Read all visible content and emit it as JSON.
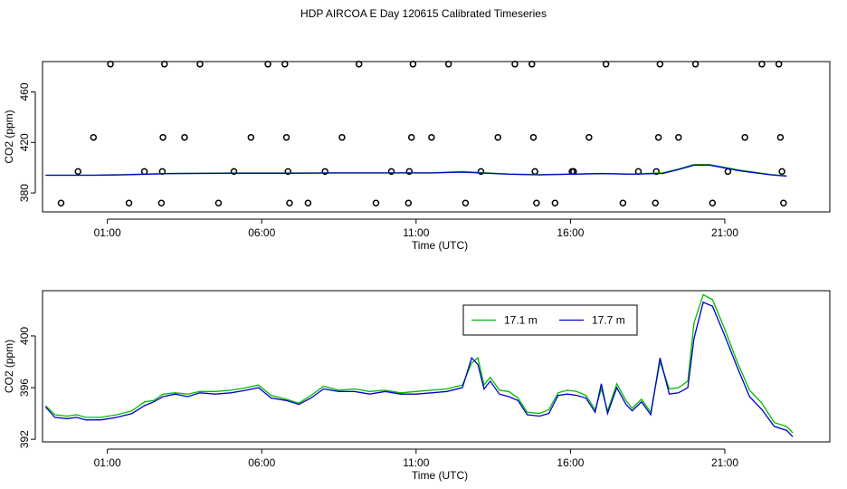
{
  "title": "HDP AIRCOA E  Day 120615  Calibrated Timeseries",
  "chart_data": [
    {
      "type": "scatter",
      "xlabel": "Time (UTC)",
      "ylabel": "CO2 (ppm)",
      "x_ticks": [
        "01:00",
        "06:00",
        "11:00",
        "16:00",
        "21:00"
      ],
      "y_ticks": [
        380,
        420,
        460
      ],
      "xlim_hours": [
        -1.1,
        24.4
      ],
      "ylim": [
        365,
        484
      ],
      "grid": false,
      "calibration_points": [
        {
          "t": -0.5,
          "v": 372
        },
        {
          "t": 0.05,
          "v": 397
        },
        {
          "t": 0.55,
          "v": 424
        },
        {
          "t": 1.1,
          "v": 482
        },
        {
          "t": 1.7,
          "v": 372
        },
        {
          "t": 2.2,
          "v": 397
        },
        {
          "t": 2.75,
          "v": 372
        },
        {
          "t": 2.78,
          "v": 397
        },
        {
          "t": 2.8,
          "v": 424
        },
        {
          "t": 2.85,
          "v": 482
        },
        {
          "t": 3.5,
          "v": 424
        },
        {
          "t": 4.0,
          "v": 482
        },
        {
          "t": 4.6,
          "v": 372
        },
        {
          "t": 5.1,
          "v": 397
        },
        {
          "t": 5.65,
          "v": 424
        },
        {
          "t": 6.2,
          "v": 482
        },
        {
          "t": 6.75,
          "v": 482
        },
        {
          "t": 6.8,
          "v": 424
        },
        {
          "t": 6.85,
          "v": 397
        },
        {
          "t": 6.9,
          "v": 372
        },
        {
          "t": 7.5,
          "v": 372
        },
        {
          "t": 8.05,
          "v": 397
        },
        {
          "t": 8.6,
          "v": 424
        },
        {
          "t": 9.15,
          "v": 482
        },
        {
          "t": 9.7,
          "v": 372
        },
        {
          "t": 10.2,
          "v": 397
        },
        {
          "t": 10.75,
          "v": 372
        },
        {
          "t": 10.78,
          "v": 397
        },
        {
          "t": 10.85,
          "v": 424
        },
        {
          "t": 10.9,
          "v": 482
        },
        {
          "t": 11.5,
          "v": 424
        },
        {
          "t": 12.05,
          "v": 482
        },
        {
          "t": 12.6,
          "v": 372
        },
        {
          "t": 13.1,
          "v": 397
        },
        {
          "t": 13.65,
          "v": 424
        },
        {
          "t": 14.2,
          "v": 482
        },
        {
          "t": 14.75,
          "v": 482
        },
        {
          "t": 14.8,
          "v": 424
        },
        {
          "t": 14.85,
          "v": 397
        },
        {
          "t": 14.9,
          "v": 372
        },
        {
          "t": 15.5,
          "v": 372
        },
        {
          "t": 16.05,
          "v": 397
        },
        {
          "t": 16.1,
          "v": 397
        },
        {
          "t": 16.6,
          "v": 424
        },
        {
          "t": 17.15,
          "v": 482
        },
        {
          "t": 17.7,
          "v": 372
        },
        {
          "t": 18.2,
          "v": 397
        },
        {
          "t": 18.75,
          "v": 372
        },
        {
          "t": 18.78,
          "v": 397
        },
        {
          "t": 18.85,
          "v": 424
        },
        {
          "t": 18.9,
          "v": 482
        },
        {
          "t": 19.5,
          "v": 424
        },
        {
          "t": 20.05,
          "v": 482
        },
        {
          "t": 20.6,
          "v": 372
        },
        {
          "t": 21.1,
          "v": 397
        },
        {
          "t": 21.65,
          "v": 424
        },
        {
          "t": 22.2,
          "v": 482
        },
        {
          "t": 22.75,
          "v": 482
        },
        {
          "t": 22.8,
          "v": 424
        },
        {
          "t": 22.85,
          "v": 397
        },
        {
          "t": 22.9,
          "v": 372
        }
      ],
      "series": [
        {
          "color": "#00bb00",
          "x": [
            -1.0,
            0.5,
            1.5,
            3,
            5,
            7,
            8.5,
            10,
            11.5,
            12.5,
            14,
            15,
            16,
            17,
            18,
            19,
            19.5,
            20,
            20.5,
            21.5,
            22.5,
            23.0
          ],
          "values": [
            394,
            394,
            394.5,
            395.5,
            395.8,
            395.8,
            396,
            396,
            396,
            397,
            395,
            394.5,
            395,
            395.5,
            395,
            396,
            399,
            402.5,
            402.5,
            398,
            394.5,
            393.5
          ]
        },
        {
          "color": "#0000cc",
          "x": [
            -1.0,
            0.5,
            1.5,
            3,
            5,
            7,
            8.5,
            10,
            11.5,
            12.5,
            14,
            15,
            16,
            17,
            18,
            19,
            19.5,
            20,
            20.5,
            21.5,
            22.5,
            23.0
          ],
          "values": [
            394,
            394,
            394.3,
            395.3,
            395.6,
            395.6,
            395.8,
            395.8,
            395.8,
            396.5,
            394.8,
            394.3,
            394.8,
            395.3,
            394.8,
            395.5,
            398.5,
            402,
            402,
            397.5,
            394.3,
            393.3
          ]
        }
      ]
    },
    {
      "type": "line",
      "xlabel": "Time (UTC)",
      "ylabel": "CO2 (ppm)",
      "x_ticks": [
        "01:00",
        "06:00",
        "11:00",
        "16:00",
        "21:00"
      ],
      "y_ticks": [
        392,
        396,
        400
      ],
      "xlim_hours": [
        -1.1,
        24.4
      ],
      "ylim": [
        391.8,
        403.5
      ],
      "grid": false,
      "legend": "top-center",
      "series": [
        {
          "name": "17.1 m",
          "color": "#00bb00",
          "x": [
            -1.0,
            -0.7,
            -0.3,
            0.0,
            0.3,
            0.8,
            1.3,
            1.8,
            2.2,
            2.5,
            2.8,
            3.2,
            3.6,
            4.0,
            4.5,
            5.0,
            5.5,
            5.9,
            6.3,
            6.8,
            7.2,
            7.6,
            8.0,
            8.5,
            9.0,
            9.5,
            10.0,
            10.5,
            11.0,
            11.5,
            12.0,
            12.5,
            12.8,
            13.0,
            13.2,
            13.4,
            13.7,
            14.0,
            14.3,
            14.6,
            15.0,
            15.3,
            15.6,
            15.9,
            16.2,
            16.5,
            16.8,
            17.0,
            17.2,
            17.5,
            17.8,
            18.0,
            18.3,
            18.6,
            18.9,
            19.2,
            19.5,
            19.8,
            20.0,
            20.3,
            20.6,
            21.0,
            21.4,
            21.8,
            22.2,
            22.6,
            23.0,
            23.2
          ],
          "values": [
            394.6,
            393.9,
            393.8,
            393.9,
            393.7,
            393.7,
            393.9,
            394.2,
            394.9,
            395.0,
            395.5,
            395.6,
            395.5,
            395.7,
            395.7,
            395.8,
            396.0,
            396.2,
            395.4,
            395.1,
            394.8,
            395.4,
            396.1,
            395.8,
            395.9,
            395.7,
            395.8,
            395.6,
            395.7,
            395.8,
            395.9,
            396.2,
            397.9,
            398.3,
            396.2,
            396.8,
            395.8,
            395.7,
            395.2,
            394.1,
            394.0,
            394.3,
            395.6,
            395.8,
            395.7,
            395.4,
            394.3,
            395.9,
            394.2,
            396.3,
            395.0,
            394.4,
            395.1,
            394.1,
            398.0,
            395.9,
            396.0,
            396.5,
            401.0,
            403.2,
            402.8,
            400.5,
            398.0,
            395.8,
            394.8,
            393.3,
            393.0,
            392.5
          ]
        },
        {
          "name": "17.7 m",
          "color": "#0000cc",
          "x": [
            -1.0,
            -0.7,
            -0.3,
            0.0,
            0.3,
            0.8,
            1.3,
            1.8,
            2.2,
            2.5,
            2.8,
            3.2,
            3.6,
            4.0,
            4.5,
            5.0,
            5.5,
            5.9,
            6.3,
            6.8,
            7.2,
            7.6,
            8.0,
            8.5,
            9.0,
            9.5,
            10.0,
            10.5,
            11.0,
            11.5,
            12.0,
            12.5,
            12.8,
            13.0,
            13.2,
            13.4,
            13.7,
            14.0,
            14.3,
            14.6,
            15.0,
            15.3,
            15.6,
            15.9,
            16.2,
            16.5,
            16.8,
            17.0,
            17.2,
            17.5,
            17.8,
            18.0,
            18.3,
            18.6,
            18.9,
            19.2,
            19.5,
            19.8,
            20.0,
            20.3,
            20.6,
            21.0,
            21.4,
            21.8,
            22.2,
            22.6,
            23.0,
            23.2
          ],
          "values": [
            394.5,
            393.7,
            393.6,
            393.7,
            393.5,
            393.5,
            393.7,
            394.0,
            394.6,
            394.9,
            395.3,
            395.5,
            395.3,
            395.6,
            395.5,
            395.6,
            395.8,
            396.0,
            395.2,
            395.0,
            394.7,
            395.2,
            395.9,
            395.7,
            395.7,
            395.5,
            395.7,
            395.5,
            395.5,
            395.6,
            395.7,
            396.0,
            398.3,
            397.8,
            395.9,
            396.5,
            395.5,
            395.3,
            395.0,
            393.9,
            393.8,
            394.0,
            395.4,
            395.5,
            395.4,
            395.2,
            394.1,
            396.3,
            394.0,
            396.0,
            394.7,
            394.2,
            394.9,
            393.9,
            398.3,
            395.5,
            395.6,
            396.0,
            399.8,
            402.6,
            402.3,
            400.0,
            397.6,
            395.3,
            394.3,
            393.0,
            392.7,
            392.2
          ]
        }
      ]
    }
  ]
}
